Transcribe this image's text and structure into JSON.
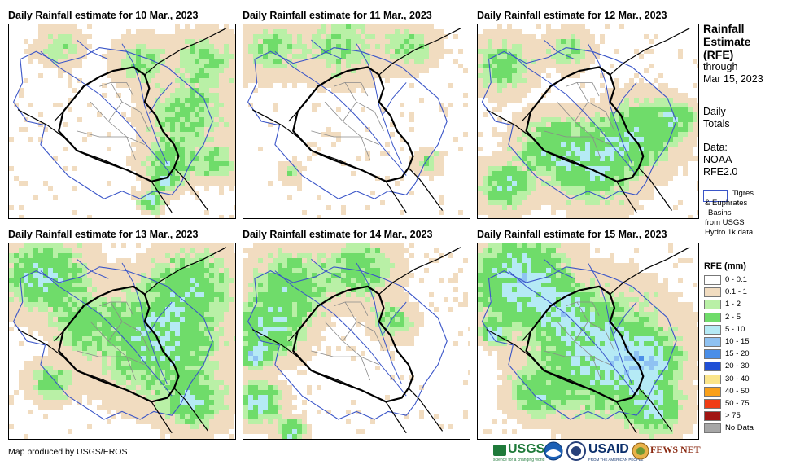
{
  "panels": [
    {
      "title": "Daily Rainfall estimate for 10 Mar., 2023",
      "day": 10
    },
    {
      "title": "Daily Rainfall estimate for 11 Mar., 2023",
      "day": 11
    },
    {
      "title": "Daily Rainfall estimate for 12 Mar., 2023",
      "day": 12
    },
    {
      "title": "Daily Rainfall estimate for 13 Mar., 2023",
      "day": 13
    },
    {
      "title": "Daily Rainfall estimate for 14 Mar., 2023",
      "day": 14
    },
    {
      "title": "Daily Rainfall estimate for 15 Mar., 2023",
      "day": 15
    }
  ],
  "side": {
    "title_line1": "Rainfall",
    "title_line2": "Estimate",
    "title_line3": "(RFE)",
    "through": "through",
    "date": "Mar 15, 2023",
    "daily1": "Daily",
    "daily2": "Totals",
    "data1": "Data:",
    "data2": "NOAA-",
    "data3": "RFE2.0",
    "basin1": "Tigres",
    "basin2": "& Euphrates",
    "basin3": "Basins",
    "basin4": "from USGS",
    "basin5": "Hydro 1k data"
  },
  "legend": {
    "title": "RFE (mm)",
    "items": [
      {
        "label": "0 - 0.1",
        "color": "#ffffff"
      },
      {
        "label": "0.1 - 1",
        "color": "#f1dcc0"
      },
      {
        "label": "1 - 2",
        "color": "#b9f0a6"
      },
      {
        "label": "2 - 5",
        "color": "#6fdc6a"
      },
      {
        "label": "5 - 10",
        "color": "#b5eaf5"
      },
      {
        "label": "10 - 15",
        "color": "#8fc2f2"
      },
      {
        "label": "15 - 20",
        "color": "#4a8ee8"
      },
      {
        "label": "20 - 30",
        "color": "#1f4fd6"
      },
      {
        "label": "30 - 40",
        "color": "#fbe58a"
      },
      {
        "label": "40 - 50",
        "color": "#f9a01a"
      },
      {
        "label": "50 - 75",
        "color": "#f03c14"
      },
      {
        "label": "> 75",
        "color": "#a11512"
      },
      {
        "label": "No Data",
        "color": "#a6a6a6"
      }
    ]
  },
  "footer": "Map produced by USGS/EROS",
  "logos": {
    "usgs": "USGS",
    "usgs_tagline": "science for a changing world",
    "usaid": "USAID",
    "usaid_tagline": "FROM THE AMERICAN PEOPLE",
    "fewsnet": "FEWS NET",
    "noaa_icon": "noaa-seal-icon",
    "dhs_icon": "seal-icon"
  }
}
